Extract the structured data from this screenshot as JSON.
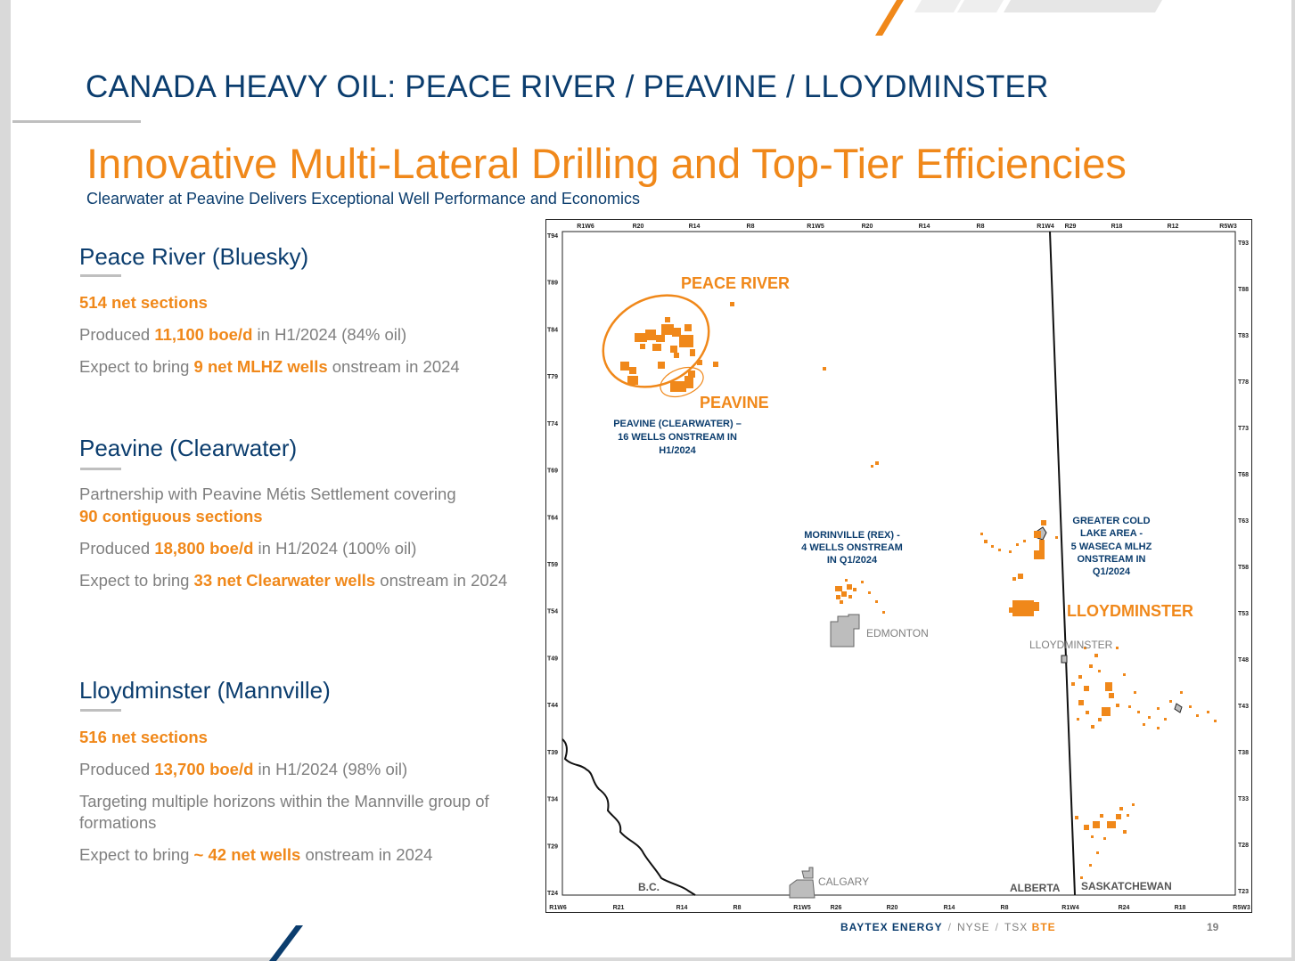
{
  "header": {
    "title": "CANADA HEAVY OIL:  PEACE RIVER / PEAVINE / LLOYDMINSTER",
    "main_title": "Innovative Multi-Lateral Drilling and Top-Tier Efficiencies",
    "subtitle": "Clearwater at Peavine Delivers Exceptional Well Performance and Economics"
  },
  "sections": {
    "peace_river": {
      "heading": "Peace River (Bluesky)",
      "b1": "514 net sections",
      "b2_pre": "Produced ",
      "b2_hl": "11,100 boe/d",
      "b2_post": " in H1/2024 (84% oil)",
      "b3_pre": "Expect to bring ",
      "b3_hl": "9 net MLHZ wells",
      "b3_post": " onstream in 2024"
    },
    "peavine": {
      "heading": "Peavine (Clearwater)",
      "b1_line1": "Partnership with Peavine Métis Settlement covering",
      "b1_line2": "90 contiguous sections",
      "b2_pre": "Produced ",
      "b2_hl": "18,800 boe/d",
      "b2_post": " in H1/2024 (100% oil)",
      "b3_pre": "Expect to bring ",
      "b3_hl": "33 net Clearwater wells",
      "b3_post": " onstream in 2024"
    },
    "lloydminster": {
      "heading": "Lloydminster (Mannville)",
      "b1": "516 net sections",
      "b2_pre": "Produced ",
      "b2_hl": "13,700 boe/d",
      "b2_post": " in H1/2024 (98% oil)",
      "b3_line1": "Targeting multiple horizons within the Mannville group of",
      "b3_line2": "formations",
      "b4_pre": "Expect to bring ",
      "b4_hl": "~ 42 net wells",
      "b4_post": " onstream in 2024"
    }
  },
  "map": {
    "top_ranges": [
      "R1W6",
      "R20",
      "R14",
      "R8",
      "R1W5",
      "R20",
      "R14",
      "R8",
      "R1W4",
      "R29",
      "R18",
      "R12",
      "R5W3"
    ],
    "bottom_ranges": [
      "R1W6",
      "R21",
      "R14",
      "R8",
      "R1W5",
      "R26",
      "R20",
      "R14",
      "R8",
      "R1W4",
      "R24",
      "R18",
      "R5W3"
    ],
    "left_townships": [
      "T94",
      "T89",
      "T84",
      "T79",
      "T74",
      "T69",
      "T64",
      "T59",
      "T54",
      "T49",
      "T44",
      "T39",
      "T34",
      "T29",
      "T24"
    ],
    "right_townships": [
      "T93",
      "T88",
      "T83",
      "T78",
      "T73",
      "T68",
      "T63",
      "T58",
      "T53",
      "T48",
      "T43",
      "T38",
      "T33",
      "T28",
      "T23"
    ],
    "area_labels": {
      "peace_river": "PEACE RIVER",
      "peavine": "PEAVINE",
      "lloydminster": "LLOYDMINSTER"
    },
    "notes": {
      "peavine_l1": "PEAVINE (CLEARWATER) –",
      "peavine_l2": "16 WELLS ONSTREAM IN",
      "peavine_l3": "H1/2024",
      "morinville_l1": "MORINVILLE (REX) -",
      "morinville_l2": "4 WELLS ONSTREAM",
      "morinville_l3": "IN Q1/2024",
      "gcl_l1": "GREATER COLD",
      "gcl_l2": "LAKE AREA -",
      "gcl_l3": "5 WASECA MLHZ",
      "gcl_l4": "ONSTREAM IN",
      "gcl_l5": "Q1/2024"
    },
    "cities": {
      "edmonton": "EDMONTON",
      "lloydminster": "LLOYDMINSTER",
      "calgary": "CALGARY"
    },
    "provinces": {
      "bc": "B.C.",
      "alberta": "ALBERTA",
      "saskatchewan": "SASKATCHEWAN"
    }
  },
  "footer": {
    "company": "BAYTEX ENERGY",
    "sep": "/",
    "nyse": "NYSE",
    "tsx": "TSX",
    "ticker": "BTE",
    "page": "19"
  },
  "colors": {
    "navy": "#0b3d6e",
    "orange": "#f0881a",
    "gray_text": "#7f7f7f"
  }
}
